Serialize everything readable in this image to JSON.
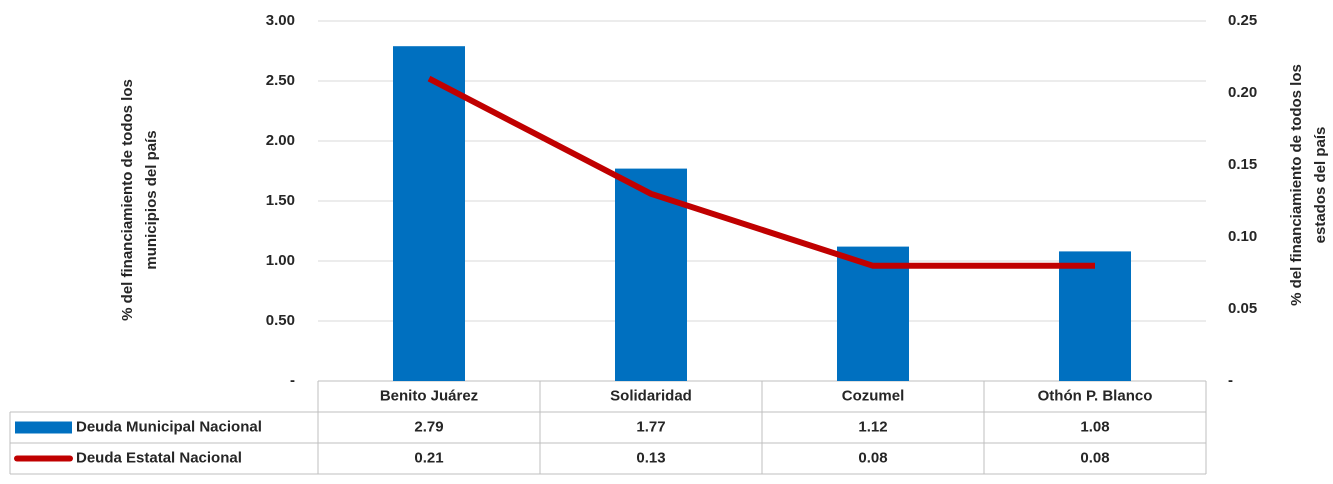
{
  "chart_data": {
    "type": "bar",
    "categories": [
      "Benito Juárez",
      "Solidaridad",
      "Cozumel",
      "Othón P. Blanco"
    ],
    "series": [
      {
        "name": "Deuda Municipal Nacional",
        "type": "bar",
        "color": "#0070c0",
        "values": [
          2.79,
          1.77,
          1.12,
          1.08
        ]
      },
      {
        "name": "Deuda Estatal Nacional",
        "type": "line",
        "axis": "y2",
        "color": "#c00000",
        "values": [
          0.21,
          0.13,
          0.08,
          0.08
        ]
      }
    ],
    "ylabel": [
      "% del financiamiento  de todos los",
      "municipios del país"
    ],
    "y2label": [
      "% del financiamiento de todos los",
      "estados del país"
    ],
    "ylim": [
      0,
      3
    ],
    "yticks": [
      {
        "value": 0,
        "label": "-"
      },
      {
        "value": 0.5,
        "label": "0.50"
      },
      {
        "value": 1,
        "label": "1.00"
      },
      {
        "value": 1.5,
        "label": "1.50"
      },
      {
        "value": 2,
        "label": "2.00"
      },
      {
        "value": 2.5,
        "label": "2.50"
      },
      {
        "value": 3,
        "label": "3.00"
      }
    ],
    "y2lim": [
      0,
      0.25
    ],
    "y2ticks": [
      {
        "value": 0,
        "label": "-"
      },
      {
        "value": 0.05,
        "label": "0.05"
      },
      {
        "value": 0.1,
        "label": "0.10"
      },
      {
        "value": 0.15,
        "label": "0.15"
      },
      {
        "value": 0.2,
        "label": "0.20"
      },
      {
        "value": 0.25,
        "label": "0.25"
      }
    ],
    "grid": true,
    "data_table": true
  }
}
